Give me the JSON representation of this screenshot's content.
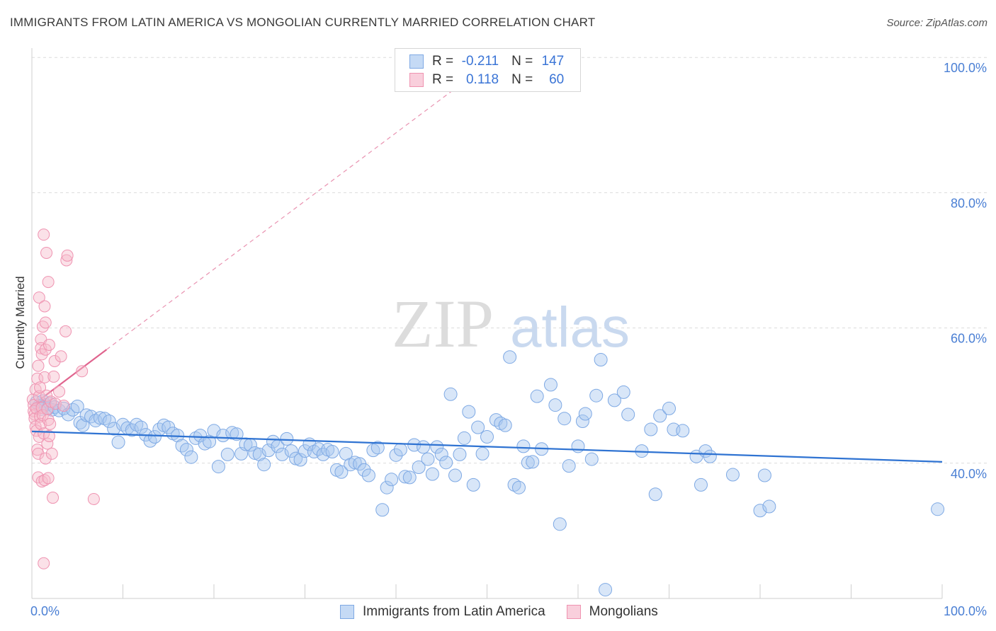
{
  "title": "IMMIGRANTS FROM LATIN AMERICA VS MONGOLIAN CURRENTLY MARRIED CORRELATION CHART",
  "source": "Source: ZipAtlas.com",
  "watermark": {
    "zip": "ZIP",
    "atlas": "atlas"
  },
  "colors": {
    "blue_fill": "#a9c8ef",
    "blue_stroke": "#7ea9e4",
    "blue_line": "#2f73d2",
    "pink_fill": "#f6bccd",
    "pink_stroke": "#ef93b1",
    "pink_line": "#e0648e",
    "grid": "#dcdcdc",
    "tick_text": "#4a7fd4"
  },
  "legend_top": [
    {
      "series": "blue",
      "r_label": "R =",
      "r_value": "-0.211",
      "n_label": "N =",
      "n_value": "147"
    },
    {
      "series": "pink",
      "r_label": "R =",
      "r_value": "0.118",
      "n_label": "N =",
      "n_value": "60"
    }
  ],
  "legend_bottom": [
    {
      "series": "blue",
      "label": "Immigrants from Latin America"
    },
    {
      "series": "pink",
      "label": "Mongolians"
    }
  ],
  "chart_data": {
    "type": "scatter",
    "title": "IMMIGRANTS FROM LATIN AMERICA VS MONGOLIAN CURRENTLY MARRIED CORRELATION CHART",
    "xlabel": "",
    "ylabel": "Currently Married",
    "xlim": [
      0,
      100
    ],
    "ylim": [
      20,
      102
    ],
    "x_tick_labels": [
      {
        "value": 0,
        "label": "0.0%"
      },
      {
        "value": 100,
        "label": "100.0%"
      }
    ],
    "y_tick_labels": [
      {
        "value": 40,
        "label": "40.0%"
      },
      {
        "value": 60,
        "label": "60.0%"
      },
      {
        "value": 80,
        "label": "80.0%"
      },
      {
        "value": 100,
        "label": "100.0%"
      }
    ],
    "grid_y": [
      40,
      60,
      80,
      100
    ],
    "series": [
      {
        "name": "Immigrants from Latin America",
        "color": "blue",
        "r": -0.211,
        "n": 147,
        "trend": {
          "x": [
            0,
            100
          ],
          "y": [
            44.7,
            40.2
          ],
          "style": "solid"
        },
        "points": [
          [
            0.5,
            49.0
          ],
          [
            0.8,
            48.5
          ],
          [
            1.0,
            48.0
          ],
          [
            1.2,
            49.2
          ],
          [
            1.5,
            48.6
          ],
          [
            1.8,
            48.1
          ],
          [
            2.0,
            48.8
          ],
          [
            2.2,
            47.9
          ],
          [
            2.5,
            48.3
          ],
          [
            3.0,
            47.8
          ],
          [
            3.5,
            48.1
          ],
          [
            4.0,
            47.2
          ],
          [
            4.5,
            47.9
          ],
          [
            5.0,
            48.4
          ],
          [
            5.3,
            46.0
          ],
          [
            5.6,
            45.6
          ],
          [
            6.0,
            47.1
          ],
          [
            6.5,
            46.9
          ],
          [
            7.0,
            46.3
          ],
          [
            7.5,
            46.7
          ],
          [
            8.0,
            46.6
          ],
          [
            8.5,
            46.2
          ],
          [
            9.0,
            45.1
          ],
          [
            9.5,
            43.1
          ],
          [
            10.0,
            45.7
          ],
          [
            10.5,
            45.2
          ],
          [
            11.0,
            44.9
          ],
          [
            11.5,
            45.7
          ],
          [
            12.0,
            45.3
          ],
          [
            12.5,
            44.2
          ],
          [
            13.0,
            43.3
          ],
          [
            13.5,
            43.9
          ],
          [
            14.0,
            45.0
          ],
          [
            14.5,
            45.6
          ],
          [
            15.0,
            45.3
          ],
          [
            15.5,
            44.4
          ],
          [
            16.0,
            44.1
          ],
          [
            16.5,
            42.6
          ],
          [
            17.0,
            42.0
          ],
          [
            17.5,
            40.9
          ],
          [
            18.0,
            43.7
          ],
          [
            18.5,
            44.1
          ],
          [
            19.0,
            42.9
          ],
          [
            19.5,
            43.2
          ],
          [
            20.0,
            44.8
          ],
          [
            20.5,
            39.5
          ],
          [
            21.0,
            44.1
          ],
          [
            21.5,
            41.3
          ],
          [
            22.0,
            44.5
          ],
          [
            22.5,
            44.3
          ],
          [
            23.0,
            41.4
          ],
          [
            23.5,
            42.8
          ],
          [
            24.0,
            42.7
          ],
          [
            24.5,
            41.5
          ],
          [
            25.0,
            41.3
          ],
          [
            25.5,
            39.8
          ],
          [
            26.0,
            41.9
          ],
          [
            26.5,
            43.2
          ],
          [
            27.0,
            42.5
          ],
          [
            27.5,
            41.3
          ],
          [
            28.0,
            43.6
          ],
          [
            28.5,
            41.8
          ],
          [
            29.0,
            40.7
          ],
          [
            29.5,
            40.5
          ],
          [
            30.0,
            41.8
          ],
          [
            30.5,
            42.8
          ],
          [
            31.0,
            41.7
          ],
          [
            31.5,
            42.1
          ],
          [
            32.0,
            41.3
          ],
          [
            32.5,
            42.0
          ],
          [
            33.0,
            41.7
          ],
          [
            33.5,
            39.0
          ],
          [
            34.0,
            38.7
          ],
          [
            34.5,
            41.4
          ],
          [
            35.0,
            39.8
          ],
          [
            35.5,
            40.1
          ],
          [
            36.0,
            39.9
          ],
          [
            36.5,
            39.0
          ],
          [
            37.0,
            38.2
          ],
          [
            37.5,
            41.9
          ],
          [
            38.0,
            42.3
          ],
          [
            38.5,
            33.1
          ],
          [
            39.0,
            36.4
          ],
          [
            39.5,
            37.6
          ],
          [
            40.0,
            41.2
          ],
          [
            40.5,
            42.0
          ],
          [
            41.0,
            38.0
          ],
          [
            41.5,
            37.9
          ],
          [
            42.0,
            42.7
          ],
          [
            42.5,
            39.4
          ],
          [
            43.0,
            42.4
          ],
          [
            43.5,
            40.6
          ],
          [
            44.0,
            38.4
          ],
          [
            44.5,
            42.4
          ],
          [
            45.0,
            41.3
          ],
          [
            45.5,
            40.1
          ],
          [
            46.0,
            50.2
          ],
          [
            46.5,
            38.2
          ],
          [
            47.0,
            41.3
          ],
          [
            47.5,
            43.7
          ],
          [
            48.0,
            47.6
          ],
          [
            48.5,
            36.8
          ],
          [
            49.0,
            45.3
          ],
          [
            49.5,
            41.4
          ],
          [
            50.0,
            43.9
          ],
          [
            51.0,
            46.4
          ],
          [
            51.5,
            45.9
          ],
          [
            52.0,
            45.6
          ],
          [
            52.5,
            55.7
          ],
          [
            53.0,
            36.8
          ],
          [
            53.5,
            36.4
          ],
          [
            54.0,
            42.5
          ],
          [
            54.5,
            40.1
          ],
          [
            55.0,
            40.2
          ],
          [
            55.5,
            49.9
          ],
          [
            56.0,
            42.1
          ],
          [
            57.0,
            51.6
          ],
          [
            57.5,
            48.6
          ],
          [
            58.0,
            31.0
          ],
          [
            58.5,
            46.6
          ],
          [
            59.0,
            39.6
          ],
          [
            60.0,
            42.5
          ],
          [
            60.5,
            46.2
          ],
          [
            60.8,
            47.3
          ],
          [
            61.5,
            40.6
          ],
          [
            62.0,
            50.0
          ],
          [
            62.5,
            55.3
          ],
          [
            63.0,
            21.3
          ],
          [
            64.0,
            49.3
          ],
          [
            65.0,
            50.5
          ],
          [
            65.5,
            47.2
          ],
          [
            67.0,
            41.8
          ],
          [
            68.0,
            45.0
          ],
          [
            68.5,
            35.4
          ],
          [
            69.0,
            47.0
          ],
          [
            70.0,
            48.1
          ],
          [
            70.5,
            45.0
          ],
          [
            71.5,
            44.8
          ],
          [
            73.0,
            41.0
          ],
          [
            73.5,
            36.8
          ],
          [
            74.0,
            41.8
          ],
          [
            74.5,
            41.0
          ],
          [
            77.0,
            38.3
          ],
          [
            80.0,
            33.0
          ],
          [
            80.5,
            38.2
          ],
          [
            81.0,
            33.6
          ],
          [
            99.5,
            33.2
          ]
        ]
      },
      {
        "name": "Mongolians",
        "color": "pink",
        "r": 0.118,
        "n": 60,
        "trend": {
          "x": [
            0,
            8.2
          ],
          "y": [
            48.5,
            56.8
          ],
          "style": "solid",
          "extension": {
            "x": [
              8.2,
              46.5
            ],
            "y": [
              56.8,
              95.4
            ],
            "style": "dashed"
          }
        },
        "points": [
          [
            0.1,
            49.4
          ],
          [
            0.2,
            48.6
          ],
          [
            0.2,
            47.7
          ],
          [
            0.3,
            47.2
          ],
          [
            0.3,
            46.6
          ],
          [
            0.4,
            50.9
          ],
          [
            0.4,
            45.4
          ],
          [
            0.5,
            48.1
          ],
          [
            0.5,
            44.8
          ],
          [
            0.6,
            52.5
          ],
          [
            0.6,
            42.0
          ],
          [
            0.7,
            54.4
          ],
          [
            0.7,
            41.4
          ],
          [
            0.7,
            37.9
          ],
          [
            0.8,
            64.5
          ],
          [
            0.8,
            49.9
          ],
          [
            0.8,
            43.9
          ],
          [
            0.9,
            51.2
          ],
          [
            0.9,
            46.9
          ],
          [
            1.0,
            58.3
          ],
          [
            1.0,
            57.0
          ],
          [
            1.0,
            45.8
          ],
          [
            1.1,
            56.1
          ],
          [
            1.1,
            48.2
          ],
          [
            1.1,
            37.3
          ],
          [
            1.2,
            60.2
          ],
          [
            1.2,
            47.1
          ],
          [
            1.3,
            73.8
          ],
          [
            1.3,
            44.4
          ],
          [
            1.3,
            25.2
          ],
          [
            1.4,
            63.2
          ],
          [
            1.4,
            52.7
          ],
          [
            1.4,
            37.5
          ],
          [
            1.5,
            60.8
          ],
          [
            1.5,
            56.8
          ],
          [
            1.5,
            40.7
          ],
          [
            1.6,
            71.1
          ],
          [
            1.6,
            50.0
          ],
          [
            1.7,
            48.0
          ],
          [
            1.7,
            42.9
          ],
          [
            1.8,
            66.8
          ],
          [
            1.8,
            46.4
          ],
          [
            1.8,
            37.8
          ],
          [
            1.9,
            57.5
          ],
          [
            1.9,
            44.0
          ],
          [
            2.0,
            45.8
          ],
          [
            2.1,
            49.1
          ],
          [
            2.2,
            41.4
          ],
          [
            2.3,
            34.9
          ],
          [
            2.4,
            52.8
          ],
          [
            2.5,
            55.1
          ],
          [
            2.6,
            48.8
          ],
          [
            3.0,
            50.6
          ],
          [
            3.2,
            55.8
          ],
          [
            3.5,
            48.5
          ],
          [
            3.7,
            59.5
          ],
          [
            3.8,
            70.0
          ],
          [
            3.9,
            70.7
          ],
          [
            5.5,
            53.6
          ],
          [
            6.8,
            34.7
          ]
        ]
      }
    ]
  }
}
